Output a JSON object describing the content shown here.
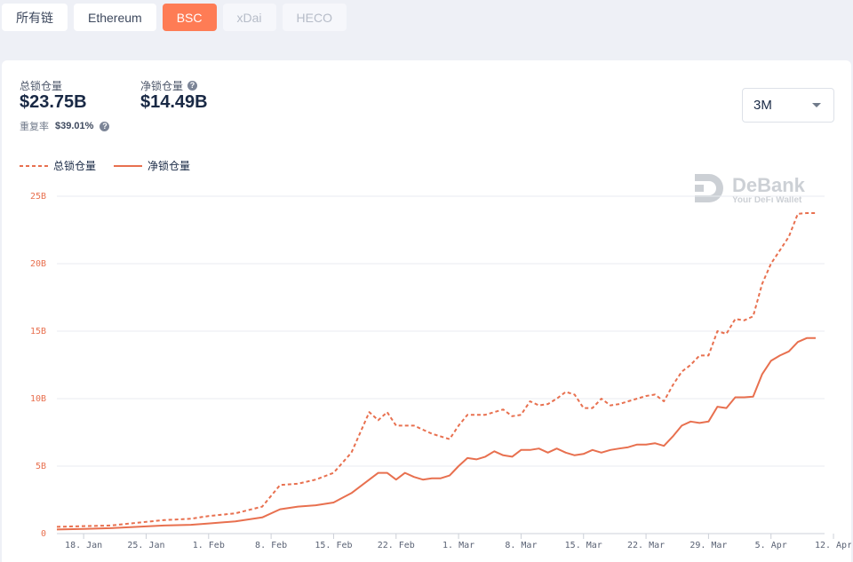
{
  "tabs": [
    {
      "label": "所有链",
      "state": "normal"
    },
    {
      "label": "Ethereum",
      "state": "normal"
    },
    {
      "label": "BSC",
      "state": "active"
    },
    {
      "label": "xDai",
      "state": "disabled"
    },
    {
      "label": "HECO",
      "state": "disabled"
    }
  ],
  "stats": {
    "total_label": "总锁仓量",
    "total_value": "$23.75B",
    "net_label": "净锁仓量",
    "net_value": "$14.49B",
    "reuse_label": "重复率",
    "reuse_value": "$39.01%"
  },
  "range_select": {
    "value": "3M"
  },
  "watermark": {
    "title": "DeBank",
    "subtitle": "Your DeFi Wallet"
  },
  "colors": {
    "accent": "#fe7c55",
    "line": "#e8704f",
    "grid": "#e9ebf0"
  },
  "chart_data": {
    "type": "line",
    "ylim": [
      0,
      25
    ],
    "yticks": [
      {
        "v": 0,
        "label": "0"
      },
      {
        "v": 5,
        "label": "5B"
      },
      {
        "v": 10,
        "label": "10B"
      },
      {
        "v": 15,
        "label": "15B"
      },
      {
        "v": 20,
        "label": "20B"
      },
      {
        "v": 25,
        "label": "25B"
      }
    ],
    "xticks": [
      "18. Jan",
      "25. Jan",
      "1. Feb",
      "8. Feb",
      "15. Feb",
      "22. Feb",
      "1. Mar",
      "8. Mar",
      "15. Mar",
      "22. Mar",
      "29. Mar",
      "5. Apr",
      "12. Apr"
    ],
    "xtick_days": [
      18,
      25,
      32,
      39,
      46,
      53,
      60,
      67,
      74,
      81,
      88,
      95,
      102
    ],
    "legend_position": "top-left",
    "series": [
      {
        "name": "总锁仓量",
        "style": "dashed",
        "points": [
          [
            15,
            0.5
          ],
          [
            18,
            0.55
          ],
          [
            21,
            0.6
          ],
          [
            24,
            0.8
          ],
          [
            27,
            1.0
          ],
          [
            30,
            1.1
          ],
          [
            32,
            1.3
          ],
          [
            35,
            1.5
          ],
          [
            38,
            2.0
          ],
          [
            40,
            3.6
          ],
          [
            42,
            3.7
          ],
          [
            44,
            4.0
          ],
          [
            46,
            4.5
          ],
          [
            48,
            6.0
          ],
          [
            50,
            9.0
          ],
          [
            51,
            8.4
          ],
          [
            52,
            9.0
          ],
          [
            53,
            8.0
          ],
          [
            55,
            8.0
          ],
          [
            57,
            7.4
          ],
          [
            58,
            7.2
          ],
          [
            59,
            7.0
          ],
          [
            60,
            8.0
          ],
          [
            61,
            8.8
          ],
          [
            63,
            8.8
          ],
          [
            65,
            9.2
          ],
          [
            66,
            8.7
          ],
          [
            67,
            8.8
          ],
          [
            68,
            9.8
          ],
          [
            69,
            9.5
          ],
          [
            70,
            9.6
          ],
          [
            71,
            10.0
          ],
          [
            72,
            10.5
          ],
          [
            73,
            10.3
          ],
          [
            74,
            9.3
          ],
          [
            75,
            9.3
          ],
          [
            76,
            10.0
          ],
          [
            77,
            9.5
          ],
          [
            78,
            9.6
          ],
          [
            79,
            9.8
          ],
          [
            80,
            10.0
          ],
          [
            81,
            10.2
          ],
          [
            82,
            10.3
          ],
          [
            83,
            9.8
          ],
          [
            84,
            11.0
          ],
          [
            85,
            12.0
          ],
          [
            86,
            12.5
          ],
          [
            87,
            13.2
          ],
          [
            88,
            13.2
          ],
          [
            89,
            15.0
          ],
          [
            90,
            14.8
          ],
          [
            91,
            15.9
          ],
          [
            92,
            15.8
          ],
          [
            93,
            16.1
          ],
          [
            94,
            18.5
          ],
          [
            95,
            20.0
          ],
          [
            96,
            21.0
          ],
          [
            97,
            22.0
          ],
          [
            98,
            23.7
          ],
          [
            99,
            23.75
          ],
          [
            100,
            23.75
          ]
        ]
      },
      {
        "name": "净锁仓量",
        "style": "solid",
        "points": [
          [
            15,
            0.3
          ],
          [
            18,
            0.35
          ],
          [
            21,
            0.4
          ],
          [
            24,
            0.5
          ],
          [
            27,
            0.6
          ],
          [
            30,
            0.65
          ],
          [
            32,
            0.75
          ],
          [
            35,
            0.9
          ],
          [
            38,
            1.2
          ],
          [
            40,
            1.8
          ],
          [
            42,
            2.0
          ],
          [
            44,
            2.1
          ],
          [
            46,
            2.3
          ],
          [
            48,
            3.0
          ],
          [
            50,
            4.0
          ],
          [
            51,
            4.5
          ],
          [
            52,
            4.5
          ],
          [
            53,
            4.0
          ],
          [
            54,
            4.5
          ],
          [
            55,
            4.2
          ],
          [
            56,
            4.0
          ],
          [
            57,
            4.1
          ],
          [
            58,
            4.1
          ],
          [
            59,
            4.3
          ],
          [
            60,
            5.0
          ],
          [
            61,
            5.6
          ],
          [
            62,
            5.5
          ],
          [
            63,
            5.7
          ],
          [
            64,
            6.1
          ],
          [
            65,
            5.8
          ],
          [
            66,
            5.7
          ],
          [
            67,
            6.2
          ],
          [
            68,
            6.2
          ],
          [
            69,
            6.3
          ],
          [
            70,
            6.0
          ],
          [
            71,
            6.3
          ],
          [
            72,
            6.0
          ],
          [
            73,
            5.8
          ],
          [
            74,
            5.9
          ],
          [
            75,
            6.2
          ],
          [
            76,
            6.0
          ],
          [
            77,
            6.2
          ],
          [
            78,
            6.3
          ],
          [
            79,
            6.4
          ],
          [
            80,
            6.6
          ],
          [
            81,
            6.6
          ],
          [
            82,
            6.7
          ],
          [
            83,
            6.5
          ],
          [
            84,
            7.2
          ],
          [
            85,
            8.0
          ],
          [
            86,
            8.3
          ],
          [
            87,
            8.2
          ],
          [
            88,
            8.3
          ],
          [
            89,
            9.4
          ],
          [
            90,
            9.3
          ],
          [
            91,
            10.1
          ],
          [
            92,
            10.1
          ],
          [
            93,
            10.15
          ],
          [
            94,
            11.8
          ],
          [
            95,
            12.8
          ],
          [
            96,
            13.2
          ],
          [
            97,
            13.5
          ],
          [
            98,
            14.2
          ],
          [
            99,
            14.49
          ],
          [
            100,
            14.49
          ]
        ]
      }
    ]
  }
}
